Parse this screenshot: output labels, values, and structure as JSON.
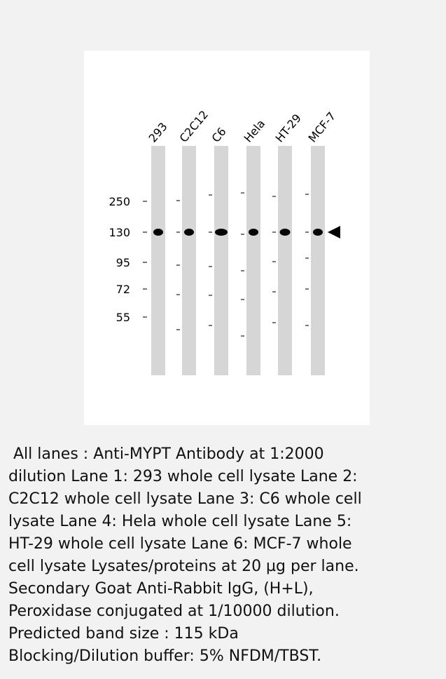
{
  "blot": {
    "lanes": [
      "293",
      "C2C12",
      "C6",
      "Hela",
      "HT-29",
      "MCF-7"
    ],
    "markers": [
      "250",
      "130",
      "95",
      "72",
      "55"
    ]
  },
  "caption": {
    "lines": [
      " All lanes : Anti-MYPT Antibody at 1:2000",
      "dilution Lane 1: 293 whole cell lysate Lane 2:",
      "C2C12 whole cell lysate Lane 3: C6 whole cell",
      "lysate Lane 4: Hela whole cell lysate Lane 5:",
      "HT-29 whole cell lysate Lane 6: MCF-7 whole",
      "cell lysate Lysates/proteins at 20 µg per lane.",
      "Secondary Goat Anti-Rabbit IgG, (H+L),",
      "Peroxidase conjugated at 1/10000 dilution.",
      "Predicted band size : 115 kDa",
      "Blocking/Dilution buffer: 5% NFDM/TBST."
    ]
  }
}
